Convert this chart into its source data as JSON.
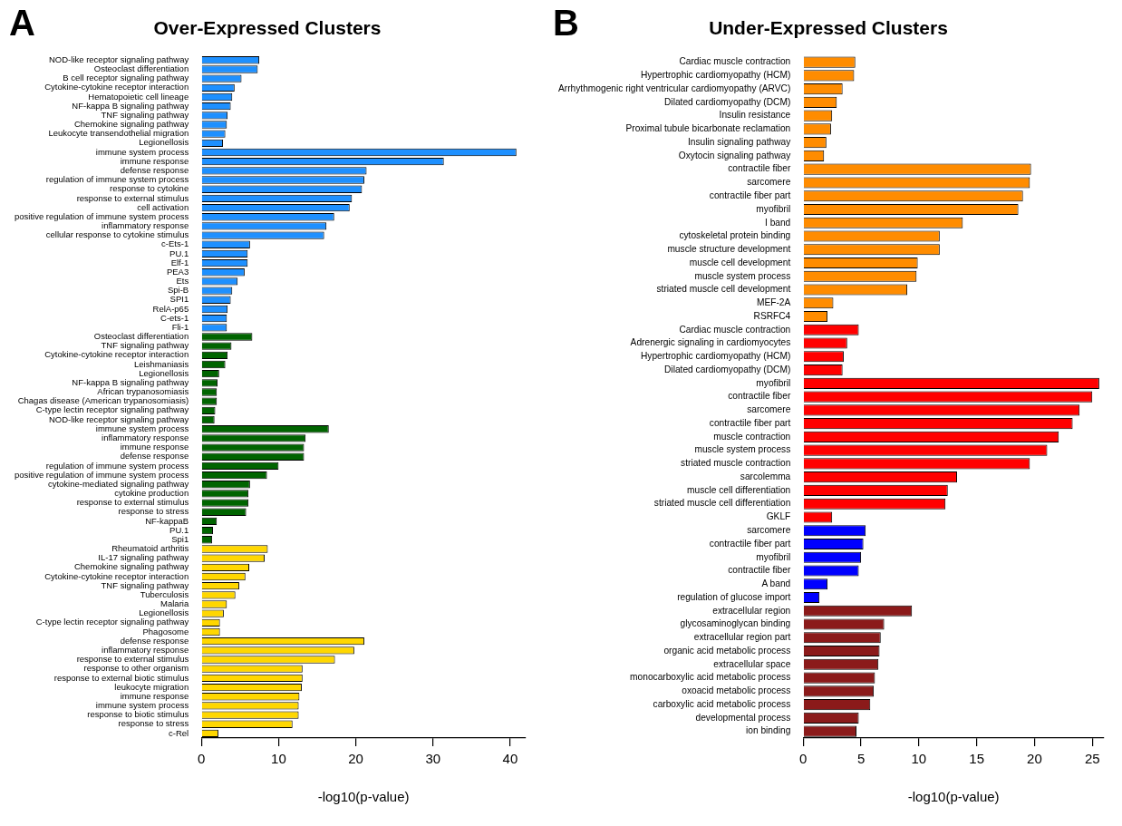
{
  "chart_data": [
    {
      "type": "bar",
      "orientation": "horizontal",
      "title": "Over-Expressed Clusters",
      "xlabel": "-log10(p-value)",
      "annotations": [
        "A"
      ],
      "categories": [
        "NOD-like receptor signaling pathway",
        "Osteoclast differentiation",
        "B cell receptor signaling pathway",
        "Cytokine-cytokine receptor interaction",
        "Hematopoietic cell lineage",
        "NF-kappa B signaling pathway",
        "TNF signaling pathway",
        "Chemokine signaling pathway",
        "Leukocyte transendothelial migration",
        "Legionellosis",
        "immune system process",
        "immune response",
        "defense response",
        "regulation of immune system process",
        "response to cytokine",
        "response to external stimulus",
        "cell activation",
        "positive regulation of immune system process",
        "inflammatory response",
        "cellular response to cytokine stimulus",
        "c-Ets-1",
        "PU.1",
        "Elf-1",
        "PEA3",
        "Ets",
        "Spi-B",
        "SPI1",
        "RelA-p65",
        "C-ets-1",
        "Fli-1",
        "Osteoclast differentiation",
        "TNF signaling pathway",
        "Cytokine-cytokine receptor interaction",
        "Leishmaniasis",
        "Legionellosis",
        "NF-kappa B signaling pathway",
        "African trypanosomiasis",
        "Chagas disease (American trypanosomiasis)",
        "C-type lectin receptor signaling pathway",
        "NOD-like receptor signaling pathway",
        "immune system process",
        "inflammatory response",
        "immune response",
        "defense response",
        "regulation of immune system process",
        "positive regulation of immune system process",
        "cytokine-mediated signaling pathway",
        "cytokine production",
        "response to external stimulus",
        "response to stress",
        "NF-kappaB",
        "PU.1",
        "Spi1",
        "Rheumatoid arthritis",
        "IL-17 signaling pathway",
        "Chemokine signaling pathway",
        "Cytokine-cytokine receptor interaction",
        "TNF signaling pathway",
        "Tuberculosis",
        "Malaria",
        "Legionellosis",
        "C-type lectin receptor signaling pathway",
        "Phagosome",
        "defense response",
        "inflammatory response",
        "response to external stimulus",
        "response to other organism",
        "response to external biotic stimulus",
        "leukocyte migration",
        "immune response",
        "immune system process",
        "response to biotic stimulus",
        "response to stress",
        "c-Rel"
      ],
      "values": [
        7.5,
        7.3,
        5.2,
        4.3,
        4.0,
        3.8,
        3.4,
        3.3,
        3.1,
        2.8,
        40.8,
        31.4,
        21.4,
        21.1,
        20.8,
        19.5,
        19.2,
        17.2,
        16.2,
        15.9,
        6.3,
        6.0,
        6.0,
        5.6,
        4.7,
        4.0,
        3.8,
        3.4,
        3.3,
        3.3,
        6.6,
        3.9,
        3.4,
        3.1,
        2.3,
        2.1,
        2.0,
        2.0,
        1.8,
        1.7,
        16.5,
        13.5,
        13.3,
        13.3,
        10.0,
        8.5,
        6.3,
        6.1,
        6.1,
        5.8,
        2.0,
        1.5,
        1.4,
        8.6,
        8.2,
        6.2,
        5.7,
        4.9,
        4.4,
        3.3,
        2.9,
        2.4,
        2.4,
        21.1,
        19.8,
        17.3,
        13.1,
        13.1,
        13.0,
        12.7,
        12.6,
        12.6,
        11.8,
        2.2
      ],
      "colors": [
        "#1e90ff",
        "#1e90ff",
        "#1e90ff",
        "#1e90ff",
        "#1e90ff",
        "#1e90ff",
        "#1e90ff",
        "#1e90ff",
        "#1e90ff",
        "#1e90ff",
        "#1e90ff",
        "#1e90ff",
        "#1e90ff",
        "#1e90ff",
        "#1e90ff",
        "#1e90ff",
        "#1e90ff",
        "#1e90ff",
        "#1e90ff",
        "#1e90ff",
        "#1e90ff",
        "#1e90ff",
        "#1e90ff",
        "#1e90ff",
        "#1e90ff",
        "#1e90ff",
        "#1e90ff",
        "#1e90ff",
        "#1e90ff",
        "#1e90ff",
        "#006400",
        "#006400",
        "#006400",
        "#006400",
        "#006400",
        "#006400",
        "#006400",
        "#006400",
        "#006400",
        "#006400",
        "#006400",
        "#006400",
        "#006400",
        "#006400",
        "#006400",
        "#006400",
        "#006400",
        "#006400",
        "#006400",
        "#006400",
        "#006400",
        "#006400",
        "#006400",
        "#ffd700",
        "#ffd700",
        "#ffd700",
        "#ffd700",
        "#ffd700",
        "#ffd700",
        "#ffd700",
        "#ffd700",
        "#ffd700",
        "#ffd700",
        "#ffd700",
        "#ffd700",
        "#ffd700",
        "#ffd700",
        "#ffd700",
        "#ffd700",
        "#ffd700",
        "#ffd700",
        "#ffd700",
        "#ffd700",
        "#ffd700"
      ],
      "xlim": [
        0,
        42
      ],
      "xticks": [
        0,
        10,
        20,
        30,
        40
      ]
    },
    {
      "type": "bar",
      "orientation": "horizontal",
      "title": "Under-Expressed Clusters",
      "xlabel": "-log10(p-value)",
      "annotations": [
        "B"
      ],
      "categories": [
        "Cardiac muscle contraction",
        "Hypertrophic cardiomyopathy (HCM)",
        "Arrhythmogenic right ventricular cardiomyopathy (ARVC)",
        "Dilated cardiomyopathy (DCM)",
        "Insulin resistance",
        "Proximal tubule bicarbonate reclamation",
        "Insulin signaling pathway",
        "Oxytocin signaling pathway",
        "contractile fiber",
        "sarcomere",
        "contractile fiber part",
        "myofibril",
        "I band",
        "cytoskeletal protein binding",
        "muscle structure development",
        "muscle cell development",
        "muscle system process",
        "striated muscle cell development",
        "MEF-2A",
        "RSRFC4",
        "Cardiac muscle contraction",
        "Adrenergic signaling in cardiomyocytes",
        "Hypertrophic cardiomyopathy (HCM)",
        "Dilated cardiomyopathy (DCM)",
        "myofibril",
        "contractile fiber",
        "sarcomere",
        "contractile fiber part",
        "muscle contraction",
        "muscle system process",
        "striated muscle contraction",
        "sarcolemma",
        "muscle cell differentiation",
        "striated muscle cell differentiation",
        "GKLF",
        "sarcomere",
        "contractile fiber part",
        "myofibril",
        "contractile fiber",
        "A band",
        "regulation of glucose import",
        "extracellular region",
        "glycosaminoglycan binding",
        "extracellular region part",
        "organic acid metabolic process",
        "extracellular space",
        "monocarboxylic acid metabolic process",
        "oxoacid metabolic process",
        "carboxylic acid metabolic process",
        "developmental process",
        "ion binding"
      ],
      "values": [
        4.5,
        4.4,
        3.4,
        2.9,
        2.5,
        2.4,
        2.0,
        1.8,
        19.7,
        19.6,
        19.0,
        18.6,
        13.8,
        11.8,
        11.8,
        9.9,
        9.8,
        9.0,
        2.6,
        2.1,
        4.8,
        3.8,
        3.5,
        3.4,
        25.6,
        25.0,
        23.9,
        23.3,
        22.1,
        21.1,
        19.6,
        13.3,
        12.5,
        12.3,
        2.5,
        5.4,
        5.2,
        5.0,
        4.8,
        2.1,
        1.4,
        9.4,
        7.0,
        6.7,
        6.6,
        6.5,
        6.2,
        6.1,
        5.8,
        4.8,
        4.6
      ],
      "colors": [
        "#ff8c00",
        "#ff8c00",
        "#ff8c00",
        "#ff8c00",
        "#ff8c00",
        "#ff8c00",
        "#ff8c00",
        "#ff8c00",
        "#ff8c00",
        "#ff8c00",
        "#ff8c00",
        "#ff8c00",
        "#ff8c00",
        "#ff8c00",
        "#ff8c00",
        "#ff8c00",
        "#ff8c00",
        "#ff8c00",
        "#ff8c00",
        "#ff8c00",
        "#ff0000",
        "#ff0000",
        "#ff0000",
        "#ff0000",
        "#ff0000",
        "#ff0000",
        "#ff0000",
        "#ff0000",
        "#ff0000",
        "#ff0000",
        "#ff0000",
        "#ff0000",
        "#ff0000",
        "#ff0000",
        "#ff0000",
        "#0000ff",
        "#0000ff",
        "#0000ff",
        "#0000ff",
        "#0000ff",
        "#0000ff",
        "#8b1a1a",
        "#8b1a1a",
        "#8b1a1a",
        "#8b1a1a",
        "#8b1a1a",
        "#8b1a1a",
        "#8b1a1a",
        "#8b1a1a",
        "#8b1a1a",
        "#8b1a1a"
      ],
      "xlim": [
        0,
        26
      ],
      "xticks": [
        0,
        5,
        10,
        15,
        20,
        25
      ]
    }
  ]
}
